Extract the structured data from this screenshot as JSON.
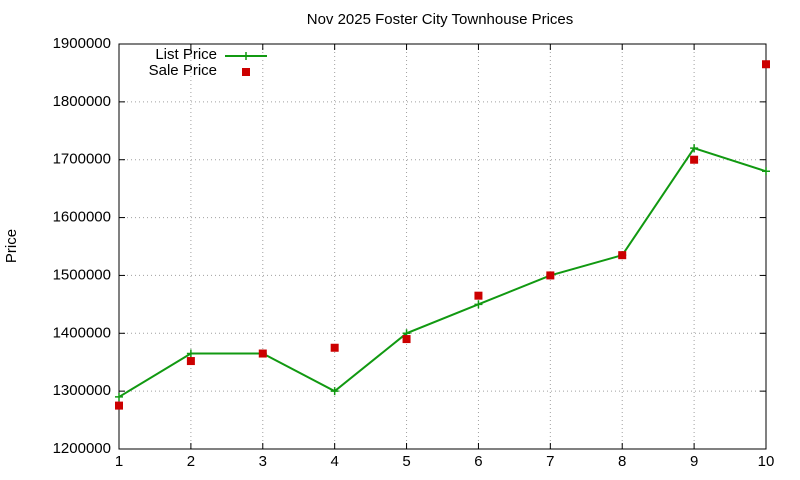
{
  "chart_data": {
    "type": "line",
    "title": "Nov 2025 Foster City Townhouse Prices",
    "y_label": "Price",
    "x": [
      1,
      2,
      3,
      4,
      5,
      6,
      7,
      8,
      9,
      10
    ],
    "series": [
      {
        "name": "List Price",
        "color": "#119911",
        "style": "linespoints",
        "values": [
          1290000,
          1365000,
          1365000,
          1300000,
          1400000,
          1450000,
          1500000,
          1535000,
          1720000,
          1680000
        ]
      },
      {
        "name": "Sale Price",
        "color": "#cc0000",
        "style": "points",
        "values": [
          1275000,
          1352000,
          1365000,
          1375000,
          1390000,
          1465000,
          1500000,
          1535000,
          1700000,
          1865000
        ]
      }
    ],
    "xlim": [
      1,
      10
    ],
    "xticks": [
      1,
      2,
      3,
      4,
      5,
      6,
      7,
      8,
      9,
      10
    ],
    "ylim": [
      1200000,
      1900000
    ],
    "yticks": [
      1200000,
      1300000,
      1400000,
      1500000,
      1600000,
      1700000,
      1800000,
      1900000
    ],
    "grid": true,
    "legend": "top-left"
  }
}
